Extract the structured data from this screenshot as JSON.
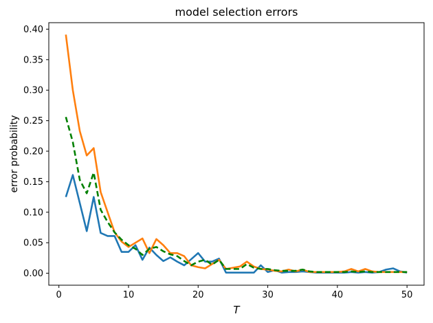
{
  "figure": {
    "background": "#ffffff",
    "spine_color": "#000000"
  },
  "chart_data": {
    "type": "line",
    "title": "model selection errors",
    "xlabel": "T",
    "ylabel": "error probability",
    "grid": false,
    "legend_position": "none",
    "xlim": [
      -1.45,
      52.45
    ],
    "ylim": [
      -0.0196,
      0.4106
    ],
    "xticks": [
      0,
      10,
      20,
      30,
      40,
      50
    ],
    "yticks": [
      0.0,
      0.05,
      0.1,
      0.15,
      0.2,
      0.25,
      0.3,
      0.35,
      0.4
    ],
    "ytick_decimals": 2,
    "x": [
      1,
      2,
      3,
      4,
      5,
      6,
      7,
      8,
      9,
      10,
      11,
      12,
      13,
      14,
      15,
      16,
      17,
      18,
      19,
      20,
      21,
      22,
      23,
      24,
      25,
      26,
      27,
      28,
      29,
      30,
      31,
      32,
      33,
      34,
      35,
      36,
      37,
      38,
      39,
      40,
      41,
      42,
      43,
      44,
      45,
      46,
      47,
      48,
      49,
      50
    ],
    "series": [
      {
        "name": "blue-solid",
        "color": "#1f77b4",
        "style": "solid",
        "values": [
          0.125,
          0.161,
          0.115,
          0.069,
          0.125,
          0.066,
          0.061,
          0.061,
          0.035,
          0.035,
          0.046,
          0.022,
          0.042,
          0.03,
          0.02,
          0.026,
          0.019,
          0.013,
          0.023,
          0.033,
          0.019,
          0.019,
          0.024,
          0.001,
          0.001,
          0.001,
          0.001,
          0.001,
          0.013,
          0.002,
          0.005,
          0.001,
          0.002,
          0.002,
          0.003,
          0.002,
          0.001,
          0.001,
          0.001,
          0.001,
          0.001,
          0.002,
          0.001,
          0.002,
          0.001,
          0.002,
          0.006,
          0.008,
          0.003,
          0.001
        ]
      },
      {
        "name": "orange-solid",
        "color": "#ff7f0e",
        "style": "solid",
        "values": [
          0.391,
          0.3,
          0.233,
          0.193,
          0.205,
          0.133,
          0.1,
          0.067,
          0.052,
          0.043,
          0.05,
          0.057,
          0.033,
          0.056,
          0.046,
          0.033,
          0.033,
          0.028,
          0.013,
          0.01,
          0.008,
          0.015,
          0.022,
          0.007,
          0.009,
          0.011,
          0.019,
          0.011,
          0.007,
          0.006,
          0.004,
          0.003,
          0.006,
          0.003,
          0.006,
          0.002,
          0.002,
          0.002,
          0.002,
          0.002,
          0.003,
          0.007,
          0.003,
          0.007,
          0.003,
          0.002,
          0.002,
          0.002,
          0.002,
          0.002
        ]
      },
      {
        "name": "green-dashed",
        "color": "#008000",
        "style": "dashed",
        "values": [
          0.256,
          0.215,
          0.153,
          0.131,
          0.165,
          0.104,
          0.084,
          0.067,
          0.055,
          0.046,
          0.04,
          0.03,
          0.04,
          0.043,
          0.036,
          0.031,
          0.028,
          0.02,
          0.013,
          0.019,
          0.022,
          0.014,
          0.022,
          0.007,
          0.007,
          0.007,
          0.015,
          0.009,
          0.007,
          0.007,
          0.005,
          0.004,
          0.004,
          0.004,
          0.006,
          0.003,
          0.002,
          0.002,
          0.002,
          0.002,
          0.002,
          0.003,
          0.002,
          0.003,
          0.002,
          0.002,
          0.002,
          0.002,
          0.002,
          0.002
        ]
      }
    ]
  }
}
